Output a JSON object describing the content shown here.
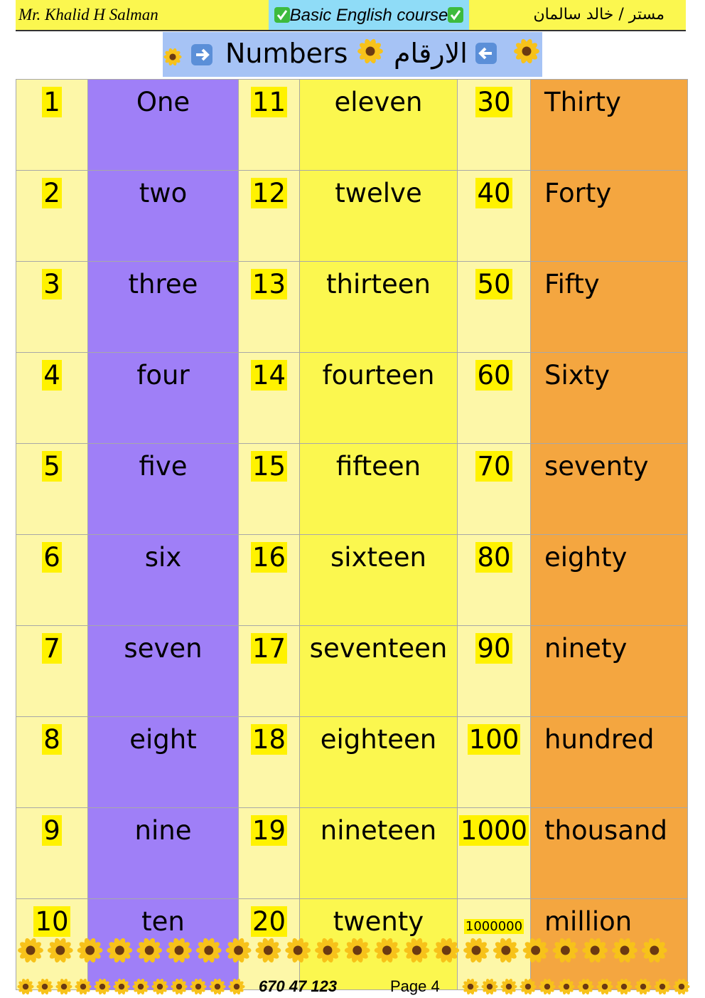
{
  "header": {
    "left": "Mr. Khalid H Salman",
    "center": "Basic English course",
    "right": "مستر / خالد سالمان"
  },
  "title": {
    "english": "Numbers",
    "arabic": "الارقام"
  },
  "table": {
    "rows": [
      [
        "1",
        "One",
        "11",
        "eleven",
        "30",
        "Thirty"
      ],
      [
        "2",
        "two",
        "12",
        "twelve",
        "40",
        "Forty"
      ],
      [
        "3",
        "three",
        "13",
        "thirteen",
        "50",
        "Fifty"
      ],
      [
        "4",
        "four",
        "14",
        "fourteen",
        "60",
        "Sixty"
      ],
      [
        "5",
        "five",
        "15",
        "fifteen",
        "70",
        "seventy"
      ],
      [
        "6",
        "six",
        "16",
        "sixteen",
        "80",
        "eighty"
      ],
      [
        "7",
        "seven",
        "17",
        "seventeen",
        "90",
        "ninety"
      ],
      [
        "8",
        "eight",
        "18",
        "eighteen",
        "100",
        "hundred"
      ],
      [
        "9",
        "nine",
        "19",
        "nineteen",
        "1000",
        "thousand"
      ],
      [
        "10",
        "ten",
        "20",
        "twenty",
        "1000000",
        "million"
      ]
    ]
  },
  "footer": {
    "phone": "670 47 123",
    "page": "Page 4"
  }
}
